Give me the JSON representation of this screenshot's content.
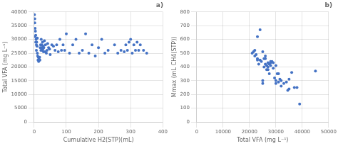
{
  "chart_data": [
    {
      "type": "scatter",
      "title": "a)",
      "xlabel": "Cumulative H2(STP)(mL)",
      "ylabel": "Total VFA (mg L⁻¹)",
      "xlim": [
        0,
        400
      ],
      "ylim": [
        0,
        40000
      ],
      "xticks": [
        0,
        100,
        200,
        300,
        400
      ],
      "yticks": [
        0,
        5000,
        10000,
        15000,
        20000,
        25000,
        30000,
        35000,
        40000
      ],
      "x": [
        1,
        2,
        2,
        3,
        3,
        4,
        5,
        5,
        6,
        7,
        7,
        8,
        9,
        10,
        10,
        11,
        12,
        13,
        14,
        15,
        16,
        17,
        18,
        19,
        20,
        21,
        22,
        23,
        24,
        25,
        26,
        27,
        28,
        29,
        30,
        32,
        34,
        35,
        38,
        40,
        42,
        45,
        48,
        50,
        55,
        60,
        65,
        70,
        75,
        80,
        85,
        90,
        95,
        100,
        110,
        120,
        130,
        140,
        150,
        160,
        170,
        180,
        190,
        200,
        210,
        220,
        230,
        250,
        260,
        270,
        280,
        285,
        290,
        295,
        300,
        305,
        310,
        315,
        320,
        325,
        330,
        340,
        350
      ],
      "values": [
        39000,
        37500,
        36000,
        34000,
        31000,
        33000,
        29000,
        31500,
        30000,
        28000,
        26000,
        29000,
        27500,
        30500,
        25000,
        24000,
        22500,
        23500,
        22000,
        23000,
        22500,
        23500,
        22500,
        27000,
        28000,
        26000,
        30000,
        27000,
        28000,
        26000,
        29000,
        26500,
        27500,
        25500,
        27000,
        29500,
        25500,
        28000,
        25000,
        26000,
        28500,
        27000,
        26500,
        24500,
        28000,
        27500,
        26000,
        28000,
        25500,
        30000,
        26000,
        28000,
        26000,
        32000,
        25000,
        28000,
        30000,
        25000,
        26000,
        32000,
        25000,
        28000,
        24000,
        27000,
        30000,
        25000,
        26000,
        28000,
        25000,
        26000,
        25500,
        28000,
        26000,
        29000,
        30000,
        25000,
        28000,
        26000,
        29000,
        26000,
        28000,
        26000,
        25000
      ],
      "color": "#4472c4",
      "grid": true
    },
    {
      "type": "scatter",
      "title": "b)",
      "xlabel": "Total VFA (mg L⁻¹)",
      "ylabel": "Mmax (mL CH4(STP))",
      "xlim": [
        0,
        50000
      ],
      "ylim": [
        0,
        800
      ],
      "xticks": [
        0,
        10000,
        20000,
        30000,
        40000,
        50000
      ],
      "yticks": [
        0,
        100,
        200,
        300,
        400,
        500,
        600,
        700,
        800
      ],
      "x": [
        21000,
        21500,
        22000,
        22000,
        22500,
        23000,
        23000,
        23000,
        23500,
        24000,
        24000,
        24500,
        25000,
        25000,
        25000,
        25500,
        25500,
        26000,
        26000,
        26000,
        26500,
        26500,
        27000,
        27000,
        27000,
        27500,
        27500,
        28000,
        28000,
        28000,
        28500,
        29000,
        29000,
        29500,
        30000,
        30000,
        30000,
        30500,
        31000,
        31000,
        31500,
        32000,
        32000,
        33000,
        34000,
        34500,
        35000,
        35000,
        36000,
        37000,
        38000,
        39000,
        45000
      ],
      "values": [
        500,
        510,
        520,
        480,
        490,
        620,
        450,
        460,
        420,
        670,
        450,
        440,
        510,
        300,
        280,
        460,
        400,
        480,
        420,
        460,
        410,
        380,
        430,
        400,
        380,
        420,
        350,
        410,
        440,
        430,
        440,
        430,
        390,
        320,
        300,
        410,
        280,
        350,
        350,
        290,
        310,
        260,
        300,
        280,
        290,
        230,
        240,
        310,
        360,
        250,
        250,
        130,
        370
      ],
      "color": "#4472c4",
      "grid": true
    }
  ]
}
